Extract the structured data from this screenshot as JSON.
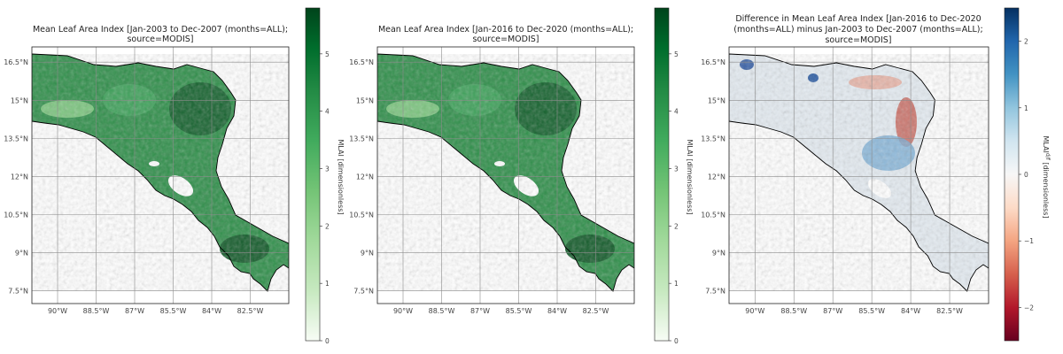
{
  "panels": [
    {
      "id": "p1",
      "title_lines": [
        "Mean Leaf Area Index [Jan-2003 to Dec-2007 (months=ALL);",
        "source=MODIS]"
      ],
      "colormap": "Greens",
      "colorbar_label": "MLAI [dimensionless]",
      "colorbar_ticks": [
        "0",
        "1",
        "2",
        "3",
        "4",
        "5"
      ]
    },
    {
      "id": "p2",
      "title_lines": [
        "Mean Leaf Area Index [Jan-2016 to Dec-2020 (months=ALL);",
        "source=MODIS]"
      ],
      "colormap": "Greens",
      "colorbar_label": "MLAI [dimensionless]",
      "colorbar_ticks": [
        "0",
        "1",
        "2",
        "3",
        "4",
        "5"
      ]
    },
    {
      "id": "p3",
      "title_lines": [
        "Difference in Mean Leaf Area Index [Jan-2016 to Dec-2020",
        "(months=ALL) minus Jan-2003 to Dec-2007 (months=ALL);",
        "source=MODIS]"
      ],
      "colormap": "RdBu",
      "colorbar_label": "MLAI^{d/f} [dimensionless]",
      "colorbar_ticks": [
        "−2",
        "−1",
        "0",
        "1",
        "2"
      ]
    }
  ],
  "lat_ticks": [
    "16.5°N",
    "15°N",
    "13.5°N",
    "12°N",
    "10.5°N",
    "9°N",
    "7.5°N"
  ],
  "lon_ticks": [
    "90°W",
    "88.5°W",
    "87°W",
    "85.5°W",
    "84°W",
    "82.5°W"
  ],
  "colors": {
    "greens": [
      "#f7fcf5",
      "#c7e9c0",
      "#a1d99b",
      "#74c476",
      "#41ab5d",
      "#238b45",
      "#006d2c",
      "#00441b"
    ],
    "rdbu": [
      "#67001f",
      "#b2182b",
      "#d6604d",
      "#f4a582",
      "#fddbc7",
      "#f7f7f7",
      "#d1e5f0",
      "#92c5de",
      "#4393c3",
      "#2166ac",
      "#053061"
    ],
    "ocean": "#ffffff",
    "border": "#000000"
  }
}
